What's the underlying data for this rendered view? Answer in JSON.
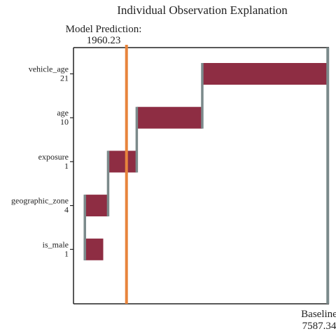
{
  "chart_data": {
    "type": "waterfall",
    "title": "Individual Observation Explanation",
    "prediction": {
      "label_line1": "Model Prediction:",
      "label_line2": "1960.23",
      "value": 1960.23
    },
    "baseline": {
      "label_line1": "Baseline",
      "label_line2": "7587.34",
      "value": 7587.34
    },
    "xlim": [
      0,
      9450
    ],
    "features": [
      {
        "name": "vehicle_age",
        "value": "21",
        "start": 4763,
        "end": 9404
      },
      {
        "name": "age",
        "value": "10",
        "start": 2340,
        "end": 4763
      },
      {
        "name": "exposure",
        "value": "1",
        "start": 1280,
        "end": 2340
      },
      {
        "name": "geographic_zone",
        "value": "4",
        "start": 420,
        "end": 1280
      },
      {
        "name": "is_male",
        "value": "1",
        "start": 420,
        "end": 1100
      }
    ],
    "colors": {
      "increase": "#8e2d43",
      "decrease": "#0b2f55",
      "connector": "#7b8a8b",
      "prediction_line": "#e8843c",
      "axis": "#222222"
    }
  }
}
